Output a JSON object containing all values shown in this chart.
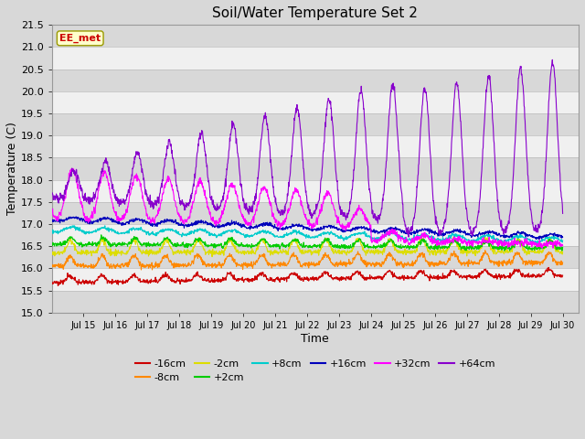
{
  "title": "Soil/Water Temperature Set 2",
  "xlabel": "Time",
  "ylabel": "Temperature (C)",
  "ylim": [
    15.0,
    21.5
  ],
  "yticks": [
    15.0,
    15.5,
    16.0,
    16.5,
    17.0,
    17.5,
    18.0,
    18.5,
    19.0,
    19.5,
    20.0,
    20.5,
    21.0,
    21.5
  ],
  "xlim": [
    14.0,
    30.5
  ],
  "xtick_days": [
    15,
    16,
    17,
    18,
    19,
    20,
    21,
    22,
    23,
    24,
    25,
    26,
    27,
    28,
    29,
    30
  ],
  "watermark": "EE_met",
  "fig_bg": "#d8d8d8",
  "plot_bg_dark": "#d8d8d8",
  "plot_bg_light": "#f0f0f0",
  "series": [
    {
      "label": "-16cm",
      "color": "#cc0000"
    },
    {
      "label": "-8cm",
      "color": "#ff8800"
    },
    {
      "label": "-2cm",
      "color": "#dddd00"
    },
    {
      "label": "+2cm",
      "color": "#00cc00"
    },
    {
      "label": "+8cm",
      "color": "#00cccc"
    },
    {
      "label": "+16cm",
      "color": "#0000bb"
    },
    {
      "label": "+32cm",
      "color": "#ff00ff"
    },
    {
      "label": "+64cm",
      "color": "#8800cc"
    }
  ]
}
